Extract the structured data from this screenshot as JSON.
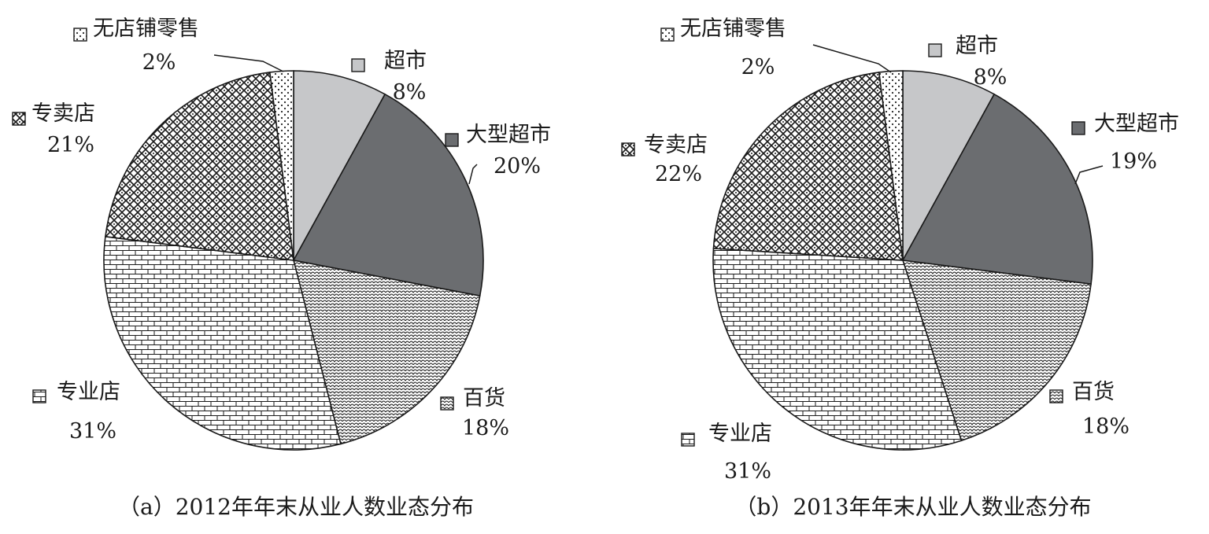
{
  "chart_data": [
    {
      "type": "pie",
      "title": "（a）2012年年末从业人数业态分布",
      "slices": [
        {
          "name": "超市",
          "value": 8,
          "label": "8%",
          "color": "#c6c7c9",
          "pattern": "solid"
        },
        {
          "name": "大型超市",
          "value": 20,
          "label": "20%",
          "color": "#6b6d70",
          "pattern": "solid"
        },
        {
          "name": "百货",
          "value": 18,
          "label": "18%",
          "color": "#ffffff",
          "pattern": "scales"
        },
        {
          "name": "专业店",
          "value": 31,
          "label": "31%",
          "color": "#ffffff",
          "pattern": "brick"
        },
        {
          "name": "专卖店",
          "value": 21,
          "label": "21%",
          "color": "#ffffff",
          "pattern": "diamond"
        },
        {
          "name": "无店铺零售",
          "value": 2,
          "label": "2%",
          "color": "#ffffff",
          "pattern": "dots"
        }
      ]
    },
    {
      "type": "pie",
      "title": "（b）2013年年末从业人数业态分布",
      "slices": [
        {
          "name": "超市",
          "value": 8,
          "label": "8%",
          "color": "#c6c7c9",
          "pattern": "solid"
        },
        {
          "name": "大型超市",
          "value": 19,
          "label": "19%",
          "color": "#6b6d70",
          "pattern": "solid"
        },
        {
          "name": "百货",
          "value": 18,
          "label": "18%",
          "color": "#ffffff",
          "pattern": "scales"
        },
        {
          "name": "专业店",
          "value": 31,
          "label": "31%",
          "color": "#ffffff",
          "pattern": "brick"
        },
        {
          "name": "专卖店",
          "value": 22,
          "label": "22%",
          "color": "#ffffff",
          "pattern": "diamond"
        },
        {
          "name": "无店铺零售",
          "value": 2,
          "label": "2%",
          "color": "#ffffff",
          "pattern": "dots"
        }
      ]
    }
  ]
}
